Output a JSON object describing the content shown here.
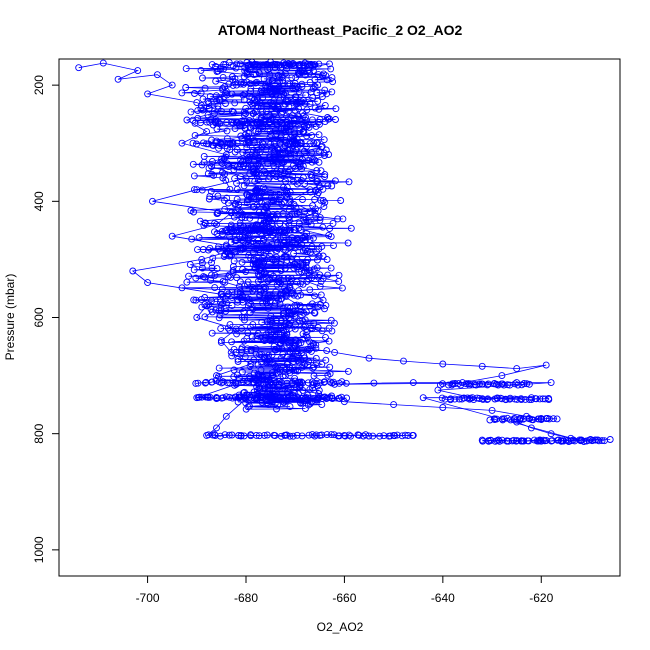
{
  "chart_data": {
    "type": "scatter",
    "title": "ATOM4 Northeast_Pacific_2 O2_AO2",
    "xlabel": "O2_AO2",
    "ylabel": "Pressure (mbar)",
    "xlim": [
      -718,
      -604
    ],
    "ylim": [
      1045,
      155
    ],
    "y_reversed": true,
    "x_ticks": [
      -700,
      -680,
      -660,
      -640,
      -620
    ],
    "y_ticks": [
      200,
      400,
      600,
      800,
      1000
    ],
    "grid": false,
    "point_color": "#0000ff",
    "line_color": "#0000ff",
    "marker": "open-circle",
    "series": [
      {
        "points": [
          [
            -714,
            170
          ],
          [
            -709,
            162
          ],
          [
            -702,
            175
          ],
          [
            -706,
            190
          ],
          [
            -698,
            182
          ],
          [
            -695,
            200
          ],
          [
            -700,
            215
          ],
          [
            -690,
            230
          ],
          [
            -685,
            245
          ],
          [
            -692,
            260
          ],
          [
            -688,
            280
          ],
          [
            -693,
            300
          ],
          [
            -684,
            320
          ],
          [
            -687,
            340
          ],
          [
            -680,
            360
          ],
          [
            -690,
            380
          ],
          [
            -699,
            400
          ],
          [
            -683,
            420
          ],
          [
            -686,
            440
          ],
          [
            -695,
            460
          ],
          [
            -681,
            480
          ],
          [
            -689,
            500
          ],
          [
            -703,
            520
          ],
          [
            -700,
            540
          ],
          [
            -685,
            560
          ],
          [
            -688,
            580
          ],
          [
            -690,
            600
          ],
          [
            -682,
            620
          ],
          [
            -685,
            640
          ],
          [
            -683,
            660
          ],
          [
            -679,
            680
          ],
          [
            -686,
            700
          ],
          [
            -682,
            715
          ],
          [
            -690,
            738
          ],
          [
            -680,
            740
          ],
          [
            -684,
            770
          ],
          [
            -686,
            790
          ],
          [
            -688,
            803
          ],
          [
            -681,
            803
          ],
          [
            -672,
            803
          ],
          [
            -665,
            803
          ],
          [
            -660,
            803
          ],
          [
            -657,
            803
          ],
          [
            -650,
            803
          ],
          [
            -646,
            803
          ]
        ]
      },
      {
        "points": [
          [
            -675,
            160
          ],
          [
            -672,
            180
          ],
          [
            -676,
            200
          ],
          [
            -670,
            220
          ],
          [
            -674,
            240
          ],
          [
            -668,
            260
          ],
          [
            -672,
            280
          ],
          [
            -670,
            300
          ],
          [
            -674,
            320
          ],
          [
            -669,
            340
          ],
          [
            -673,
            360
          ],
          [
            -667,
            380
          ],
          [
            -671,
            400
          ],
          [
            -666,
            420
          ],
          [
            -672,
            440
          ],
          [
            -668,
            460
          ],
          [
            -670,
            480
          ],
          [
            -674,
            500
          ],
          [
            -667,
            520
          ],
          [
            -671,
            540
          ],
          [
            -673,
            560
          ],
          [
            -669,
            580
          ],
          [
            -672,
            600
          ],
          [
            -670,
            620
          ],
          [
            -675,
            640
          ],
          [
            -671,
            660
          ],
          [
            -668,
            680
          ],
          [
            -672,
            700
          ],
          [
            -669,
            720
          ],
          [
            -673,
            738
          ],
          [
            -666,
            740
          ],
          [
            -660,
            745
          ],
          [
            -650,
            750
          ],
          [
            -640,
            755
          ],
          [
            -630,
            760
          ],
          [
            -623,
            770
          ],
          [
            -620,
            775
          ],
          [
            -625,
            780
          ],
          [
            -622,
            790
          ],
          [
            -618,
            800
          ],
          [
            -614,
            808
          ],
          [
            -610,
            810
          ],
          [
            -606,
            810
          ]
        ]
      },
      {
        "points": [
          [
            -670,
            650
          ],
          [
            -662,
            660
          ],
          [
            -655,
            670
          ],
          [
            -648,
            675
          ],
          [
            -640,
            680
          ],
          [
            -632,
            684
          ],
          [
            -625,
            688
          ],
          [
            -619,
            682
          ],
          [
            -628,
            700
          ],
          [
            -636,
            712
          ],
          [
            -646,
            712
          ],
          [
            -654,
            713
          ],
          [
            -662,
            715
          ],
          [
            -625,
            712
          ],
          [
            -618,
            712
          ],
          [
            -641,
            725
          ],
          [
            -634,
            738
          ],
          [
            -628,
            740
          ],
          [
            -622,
            738
          ],
          [
            -644,
            738
          ],
          [
            -612,
            812
          ],
          [
            -616,
            812
          ],
          [
            -620,
            813
          ],
          [
            -624,
            812
          ],
          [
            -629,
            812
          ],
          [
            -632,
            811
          ]
        ]
      }
    ],
    "dense_bands": [
      {
        "x_center": -675,
        "x_spread": 7,
        "y_from": 160,
        "y_to": 760,
        "count": 900
      },
      {
        "x_center": -684,
        "x_spread": 6,
        "y_from": 160,
        "y_to": 600,
        "count": 250
      },
      {
        "x_center": -667,
        "x_spread": 5,
        "y_from": 160,
        "y_to": 760,
        "count": 250
      }
    ],
    "horizontal_streaks": [
      {
        "y": 165,
        "x_from": -680,
        "x_to": -665,
        "count": 40
      },
      {
        "y": 265,
        "x_from": -690,
        "x_to": -670,
        "count": 25
      },
      {
        "y": 300,
        "x_from": -690,
        "x_to": -665,
        "count": 30
      },
      {
        "y": 450,
        "x_from": -684,
        "x_to": -670,
        "count": 40
      },
      {
        "y": 712,
        "x_from": -690,
        "x_to": -660,
        "count": 45
      },
      {
        "y": 715,
        "x_from": -640,
        "x_to": -623,
        "count": 35
      },
      {
        "y": 738,
        "x_from": -690,
        "x_to": -660,
        "count": 60
      },
      {
        "y": 740,
        "x_from": -640,
        "x_to": -618,
        "count": 40
      },
      {
        "y": 775,
        "x_from": -630,
        "x_to": -617,
        "count": 30
      },
      {
        "y": 803,
        "x_from": -688,
        "x_to": -646,
        "count": 55
      },
      {
        "y": 812,
        "x_from": -632,
        "x_to": -607,
        "count": 60
      }
    ]
  }
}
